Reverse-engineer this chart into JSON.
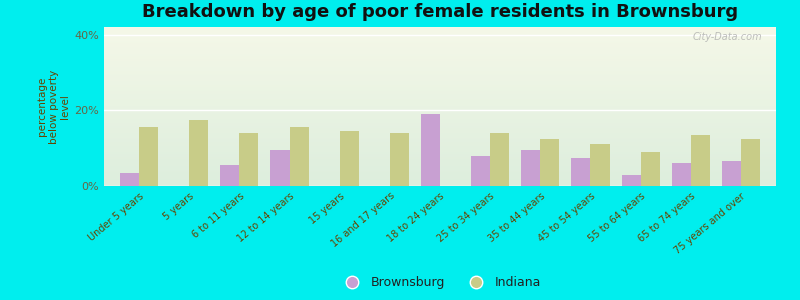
{
  "title": "Breakdown by age of poor female residents in Brownsburg",
  "categories": [
    "Under 5 years",
    "5 years",
    "6 to 11 years",
    "12 to 14 years",
    "15 years",
    "16 and 17 years",
    "18 to 24 years",
    "25 to 34 years",
    "35 to 44 years",
    "45 to 54 years",
    "55 to 64 years",
    "65 to 74 years",
    "75 years and over"
  ],
  "brownsburg_values": [
    3.5,
    0,
    5.5,
    9.5,
    0,
    0,
    19.0,
    8.0,
    9.5,
    7.5,
    3.0,
    6.0,
    6.5
  ],
  "indiana_values": [
    15.5,
    17.5,
    14.0,
    15.5,
    14.5,
    14.0,
    0,
    14.0,
    12.5,
    11.0,
    9.0,
    13.5,
    12.5
  ],
  "brownsburg_color": "#c8a0d2",
  "indiana_color": "#c8cc88",
  "plot_bg_top": "#f5f8e8",
  "plot_bg_bottom": "#ddeedd",
  "outer_background": "#00eeee",
  "ylabel": "percentage\nbelow poverty\nlevel",
  "yticks": [
    0,
    20,
    40
  ],
  "ytick_labels": [
    "0%",
    "20%",
    "40%"
  ],
  "ylim": [
    0,
    42
  ],
  "title_fontsize": 13,
  "bar_width": 0.38,
  "watermark": "City-Data.com",
  "legend_labels": [
    "Brownsburg",
    "Indiana"
  ]
}
